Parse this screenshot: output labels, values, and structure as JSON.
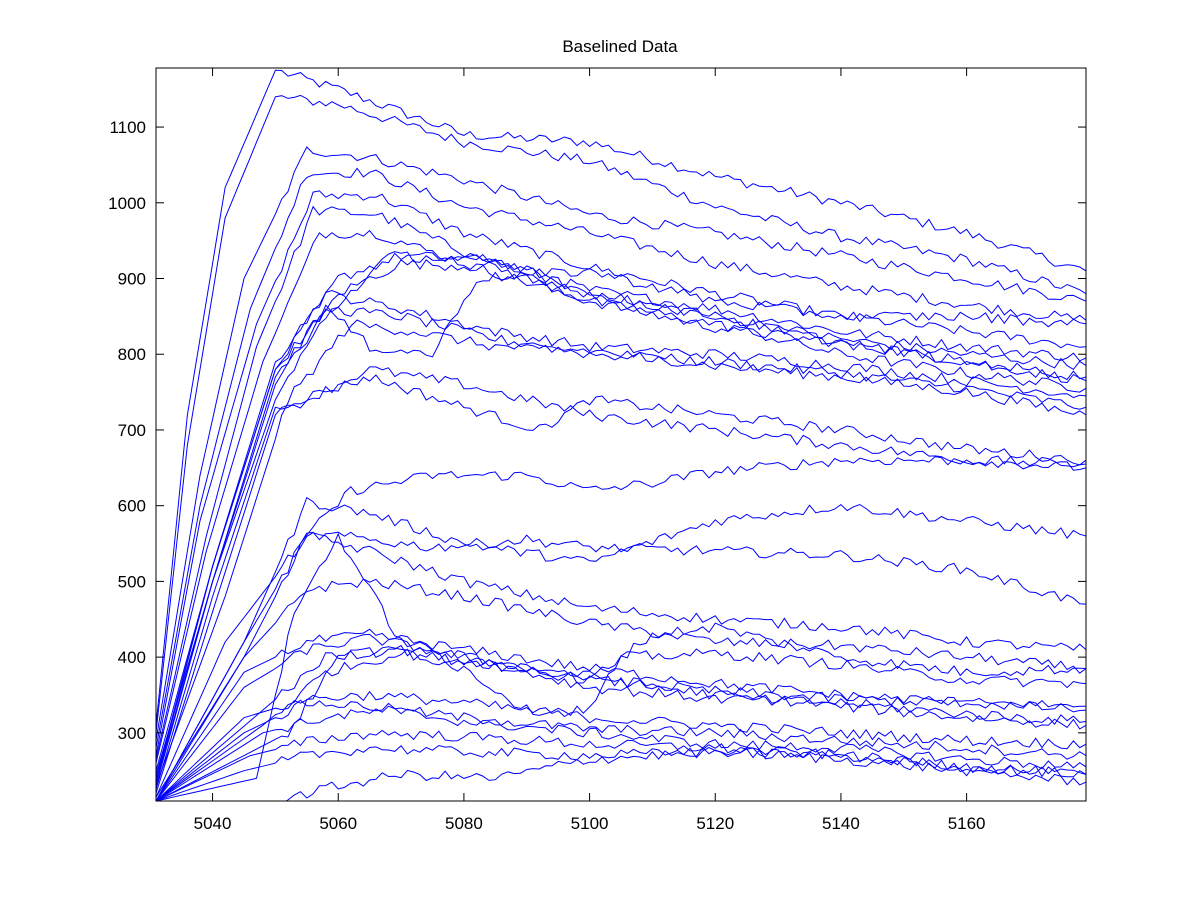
{
  "chart_data": {
    "type": "line",
    "title": "Baselined Data",
    "xlabel": "",
    "ylabel": "",
    "xlim": [
      5031,
      5179
    ],
    "ylim": [
      210,
      1178
    ],
    "xticks": [
      5040,
      5060,
      5080,
      5100,
      5120,
      5140,
      5160
    ],
    "yticks": [
      300,
      400,
      500,
      600,
      700,
      800,
      900,
      1000,
      1100
    ],
    "line_color": "#0000ff",
    "grid": false,
    "legend": "none",
    "series": [
      {
        "x": [
          5031,
          5036,
          5042,
          5050,
          5060,
          5080,
          5100,
          5120,
          5140,
          5160,
          5179
        ],
        "y": [
          310,
          720,
          1020,
          1175,
          1150,
          1090,
          1080,
          1035,
          1000,
          960,
          910
        ]
      },
      {
        "x": [
          5031,
          5036,
          5042,
          5050,
          5060,
          5080,
          5100,
          5120,
          5140,
          5160,
          5179
        ],
        "y": [
          300,
          680,
          980,
          1140,
          1130,
          1080,
          1055,
          995,
          955,
          925,
          880
        ]
      },
      {
        "x": [
          5031,
          5038,
          5045,
          5055,
          5065,
          5080,
          5100,
          5120,
          5140,
          5160,
          5179
        ],
        "y": [
          290,
          640,
          900,
          1070,
          1060,
          1030,
          985,
          960,
          930,
          900,
          870
        ]
      },
      {
        "x": [
          5031,
          5038,
          5046,
          5055,
          5065,
          5080,
          5100,
          5120,
          5140,
          5160,
          5179
        ],
        "y": [
          280,
          600,
          860,
          1040,
          1040,
          995,
          960,
          920,
          890,
          865,
          845
        ]
      },
      {
        "x": [
          5031,
          5038,
          5047,
          5056,
          5066,
          5080,
          5100,
          5120,
          5140,
          5160,
          5179
        ],
        "y": [
          270,
          580,
          840,
          1010,
          1010,
          960,
          915,
          880,
          850,
          830,
          810
        ]
      },
      {
        "x": [
          5031,
          5039,
          5047,
          5056,
          5066,
          5080,
          5100,
          5120,
          5140,
          5160,
          5179
        ],
        "y": [
          265,
          560,
          810,
          990,
          985,
          935,
          885,
          860,
          830,
          810,
          795
        ]
      },
      {
        "x": [
          5031,
          5039,
          5048,
          5057,
          5066,
          5080,
          5100,
          5120,
          5140,
          5160,
          5179
        ],
        "y": [
          260,
          540,
          790,
          960,
          960,
          920,
          870,
          835,
          815,
          790,
          765
        ]
      },
      {
        "x": [
          5031,
          5040,
          5050,
          5060,
          5070,
          5085,
          5100,
          5120,
          5140,
          5160,
          5179
        ],
        "y": [
          250,
          520,
          780,
          900,
          930,
          925,
          880,
          850,
          820,
          800,
          785
        ]
      },
      {
        "x": [
          5031,
          5040,
          5050,
          5060,
          5070,
          5085,
          5100,
          5120,
          5140,
          5160,
          5179
        ],
        "y": [
          245,
          500,
          760,
          880,
          920,
          915,
          870,
          840,
          800,
          775,
          755
        ]
      },
      {
        "x": [
          5031,
          5040,
          5050,
          5058,
          5070,
          5085,
          5100,
          5120,
          5140,
          5160,
          5179
        ],
        "y": [
          240,
          520,
          790,
          880,
          860,
          830,
          810,
          800,
          785,
          765,
          745
        ]
      },
      {
        "x": [
          5031,
          5040,
          5050,
          5058,
          5070,
          5085,
          5100,
          5120,
          5140,
          5160,
          5179
        ],
        "y": [
          235,
          500,
          770,
          860,
          850,
          820,
          800,
          790,
          775,
          755,
          730
        ]
      },
      {
        "x": [
          5031,
          5042,
          5052,
          5062,
          5072,
          5085,
          5100,
          5120,
          5140,
          5160,
          5179
        ],
        "y": [
          230,
          480,
          740,
          840,
          830,
          810,
          805,
          785,
          770,
          750,
          720
        ]
      },
      {
        "x": [
          5031,
          5040,
          5050,
          5065,
          5080,
          5092,
          5100,
          5120,
          5140,
          5160,
          5179
        ],
        "y": [
          225,
          480,
          730,
          770,
          730,
          700,
          740,
          720,
          700,
          675,
          660
        ]
      },
      {
        "x": [
          5031,
          5040,
          5050,
          5065,
          5080,
          5100,
          5120,
          5140,
          5160,
          5179
        ],
        "y": [
          220,
          460,
          720,
          780,
          760,
          720,
          700,
          680,
          660,
          650
        ]
      },
      {
        "x": [
          5031,
          5045,
          5055,
          5062,
          5075,
          5090,
          5100,
          5110,
          5120,
          5140,
          5160,
          5179
        ],
        "y": [
          215,
          400,
          560,
          620,
          640,
          640,
          620,
          630,
          645,
          660,
          660,
          655
        ]
      },
      {
        "x": [
          5031,
          5045,
          5055,
          5065,
          5080,
          5100,
          5120,
          5140,
          5160,
          5179
        ],
        "y": [
          210,
          420,
          605,
          590,
          550,
          525,
          580,
          600,
          580,
          560
        ]
      },
      {
        "x": [
          5031,
          5045,
          5055,
          5060,
          5075,
          5090,
          5100,
          5120,
          5140,
          5160,
          5179
        ],
        "y": [
          210,
          420,
          560,
          560,
          545,
          555,
          545,
          540,
          535,
          515,
          470
        ]
      },
      {
        "x": [
          5031,
          5042,
          5055,
          5065,
          5080,
          5100,
          5120,
          5140,
          5160,
          5179
        ],
        "y": [
          215,
          420,
          560,
          540,
          500,
          465,
          450,
          440,
          420,
          410
        ]
      },
      {
        "x": [
          5031,
          5045,
          5055,
          5065,
          5080,
          5100,
          5120,
          5140,
          5160,
          5179
        ],
        "y": [
          210,
          400,
          490,
          500,
          480,
          445,
          420,
          415,
          400,
          385
        ]
      },
      {
        "x": [
          5031,
          5045,
          5055,
          5065,
          5080,
          5100,
          5120,
          5140,
          5160,
          5179
        ],
        "y": [
          210,
          380,
          420,
          430,
          410,
          385,
          365,
          350,
          340,
          330
        ]
      },
      {
        "x": [
          5031,
          5045,
          5055,
          5065,
          5080,
          5100,
          5120,
          5140,
          5160,
          5179
        ],
        "y": [
          210,
          360,
          410,
          425,
          400,
          375,
          350,
          335,
          320,
          310
        ]
      },
      {
        "x": [
          5031,
          5048,
          5058,
          5070,
          5080,
          5100,
          5120,
          5140,
          5160,
          5179
        ],
        "y": [
          210,
          330,
          400,
          410,
          395,
          370,
          355,
          345,
          340,
          335
        ]
      },
      {
        "x": [
          5031,
          5048,
          5058,
          5070,
          5085,
          5100,
          5120,
          5140,
          5160,
          5179
        ],
        "y": [
          210,
          310,
          380,
          405,
          390,
          360,
          345,
          340,
          325,
          315
        ]
      },
      {
        "x": [
          5031,
          5045,
          5055,
          5065,
          5080,
          5100,
          5120,
          5140,
          5160,
          5179
        ],
        "y": [
          210,
          320,
          345,
          350,
          340,
          320,
          310,
          300,
          290,
          285
        ]
      },
      {
        "x": [
          5031,
          5045,
          5055,
          5065,
          5080,
          5100,
          5120,
          5140,
          5160,
          5179
        ],
        "y": [
          210,
          300,
          340,
          335,
          320,
          305,
          300,
          290,
          280,
          270
        ]
      },
      {
        "x": [
          5031,
          5048,
          5058,
          5068,
          5080,
          5100,
          5120,
          5140,
          5160,
          5179
        ],
        "y": [
          210,
          300,
          320,
          330,
          315,
          300,
          285,
          280,
          265,
          255
        ]
      },
      {
        "x": [
          5031,
          5046,
          5056,
          5066,
          5080,
          5100,
          5120,
          5140,
          5160,
          5179
        ],
        "y": [
          210,
          270,
          290,
          300,
          295,
          285,
          280,
          270,
          255,
          245
        ]
      },
      {
        "x": [
          5031,
          5045,
          5055,
          5065,
          5080,
          5100,
          5120,
          5140,
          5160,
          5179
        ],
        "y": [
          210,
          250,
          270,
          280,
          275,
          270,
          275,
          265,
          250,
          235
        ]
      },
      {
        "x": [
          5031,
          5050,
          5060,
          5070,
          5085,
          5100,
          5120,
          5140,
          5160,
          5179
        ],
        "y": [
          210,
          210,
          230,
          245,
          240,
          265,
          275,
          270,
          255,
          245
        ]
      },
      {
        "x": [
          5031,
          5047,
          5053,
          5060,
          5070,
          5085,
          5100,
          5110,
          5120,
          5130,
          5140,
          5160,
          5179
        ],
        "y": [
          210,
          240,
          460,
          560,
          420,
          390,
          370,
          430,
          440,
          420,
          400,
          380,
          385
        ]
      },
      {
        "x": [
          5031,
          5052,
          5060,
          5070,
          5080,
          5090,
          5100,
          5105,
          5120,
          5140,
          5160,
          5179
        ],
        "y": [
          210,
          300,
          400,
          410,
          385,
          330,
          330,
          400,
          405,
          390,
          370,
          365
        ]
      },
      {
        "x": [
          5031,
          5040,
          5050,
          5058,
          5068,
          5082,
          5100,
          5120,
          5140,
          5160,
          5179
        ],
        "y": [
          230,
          500,
          740,
          850,
          930,
          925,
          880,
          850,
          815,
          790,
          770
        ]
      },
      {
        "x": [
          5031,
          5040,
          5050,
          5058,
          5065,
          5075,
          5082,
          5100,
          5120,
          5140,
          5160,
          5179
        ],
        "y": [
          235,
          520,
          780,
          860,
          810,
          800,
          900,
          910,
          870,
          850,
          850,
          840
        ]
      }
    ]
  }
}
